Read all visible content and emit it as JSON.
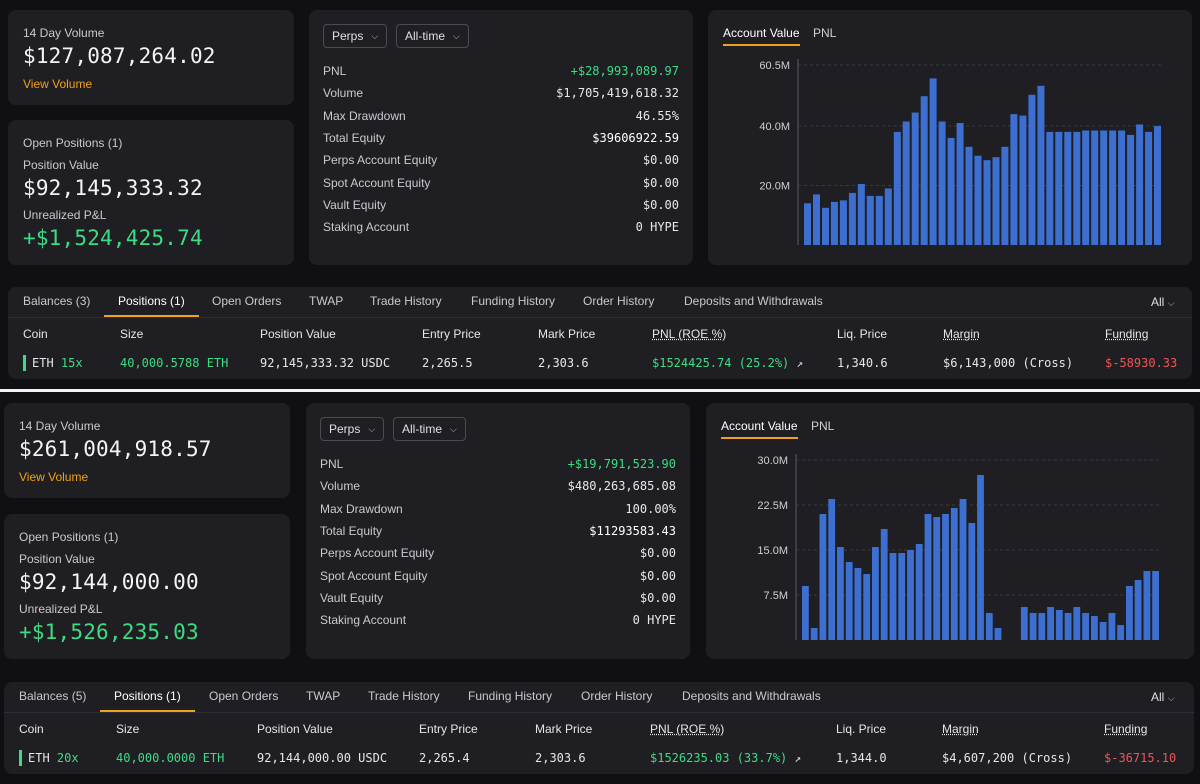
{
  "accounts": [
    {
      "volume": {
        "label": "14 Day Volume",
        "value": "$127,087,264.02",
        "link": "View Volume"
      },
      "positions": {
        "title": "Open Positions (1)",
        "pv_label": "Position Value",
        "pv_value": "$92,145,333.32",
        "upnl_label": "Unrealized P&L",
        "upnl_value": "+$1,524,425.74"
      },
      "filters": {
        "market": "Perps",
        "range": "All-time"
      },
      "stats": [
        {
          "k": "PNL",
          "v": "+$28,993,089.97",
          "tone": "green"
        },
        {
          "k": "Volume",
          "v": "$1,705,419,618.32",
          "tone": "normal"
        },
        {
          "k": "Max Drawdown",
          "v": "46.55%",
          "tone": "normal"
        },
        {
          "k": "Total Equity",
          "v": "$39606922.59",
          "tone": "white"
        },
        {
          "k": "Perps Account Equity",
          "v": "$0.00",
          "tone": "normal"
        },
        {
          "k": "Spot Account Equity",
          "v": "$0.00",
          "tone": "normal"
        },
        {
          "k": "Vault Equity",
          "v": "$0.00",
          "tone": "normal"
        },
        {
          "k": "Staking Account",
          "v": "0 HYPE",
          "tone": "normal"
        }
      ],
      "chart_tabs": [
        "Account Value",
        "PNL"
      ],
      "tabs": [
        "Balances (3)",
        "Positions (1)",
        "Open Orders",
        "TWAP",
        "Trade History",
        "Funding History",
        "Order History",
        "Deposits and Withdrawals"
      ],
      "filter_all": "All",
      "columns": [
        "Coin",
        "Size",
        "Position Value",
        "Entry Price",
        "Mark Price",
        "PNL (ROE %)",
        "Liq. Price",
        "Margin",
        "Funding"
      ],
      "row": {
        "coin": "ETH",
        "lev": "15x",
        "size": "40,000.5788 ETH",
        "pos_value": "92,145,333.32 USDC",
        "entry": "2,265.5",
        "mark": "2,303.6",
        "pnl": "$1524425.74 (25.2%)",
        "liq": "1,340.6",
        "margin": "$6,143,000 (Cross)",
        "funding": "$-58930.33"
      }
    },
    {
      "volume": {
        "label": "14 Day Volume",
        "value": "$261,004,918.57",
        "link": "View Volume"
      },
      "positions": {
        "title": "Open Positions (1)",
        "pv_label": "Position Value",
        "pv_value": "$92,144,000.00",
        "upnl_label": "Unrealized P&L",
        "upnl_value": "+$1,526,235.03"
      },
      "filters": {
        "market": "Perps",
        "range": "All-time"
      },
      "stats": [
        {
          "k": "PNL",
          "v": "+$19,791,523.90",
          "tone": "green"
        },
        {
          "k": "Volume",
          "v": "$480,263,685.08",
          "tone": "normal"
        },
        {
          "k": "Max Drawdown",
          "v": "100.00%",
          "tone": "normal"
        },
        {
          "k": "Total Equity",
          "v": "$11293583.43",
          "tone": "white"
        },
        {
          "k": "Perps Account Equity",
          "v": "$0.00",
          "tone": "normal"
        },
        {
          "k": "Spot Account Equity",
          "v": "$0.00",
          "tone": "normal"
        },
        {
          "k": "Vault Equity",
          "v": "$0.00",
          "tone": "normal"
        },
        {
          "k": "Staking Account",
          "v": "0 HYPE",
          "tone": "normal"
        }
      ],
      "chart_tabs": [
        "Account Value",
        "PNL"
      ],
      "tabs": [
        "Balances (5)",
        "Positions (1)",
        "Open Orders",
        "TWAP",
        "Trade History",
        "Funding History",
        "Order History",
        "Deposits and Withdrawals"
      ],
      "filter_all": "All",
      "columns": [
        "Coin",
        "Size",
        "Position Value",
        "Entry Price",
        "Mark Price",
        "PNL (ROE %)",
        "Liq. Price",
        "Margin",
        "Funding"
      ],
      "row": {
        "coin": "ETH",
        "lev": "20x",
        "size": "40,000.0000 ETH",
        "pos_value": "92,144,000.00 USDC",
        "entry": "2,265.4",
        "mark": "2,303.6",
        "pnl": "$1526235.03 (33.7%)",
        "liq": "1,344.0",
        "margin": "$4,607,200 (Cross)",
        "funding": "$-36715.10"
      }
    }
  ],
  "chart_data": [
    {
      "type": "bar",
      "ylim": [
        0,
        60.5
      ],
      "ytick_labels": [
        "20.0M",
        "40.0M",
        "60.5M"
      ],
      "ytick_values": [
        20,
        40,
        60.5
      ],
      "values": [
        14,
        17,
        12.5,
        14.5,
        15,
        17.5,
        20.5,
        16.5,
        16.5,
        19,
        38,
        41.5,
        44.5,
        50,
        56,
        41.5,
        36,
        41,
        33,
        30,
        28.5,
        29.5,
        33,
        44,
        43.5,
        50.5,
        53.5,
        38,
        38,
        38,
        38,
        38.5,
        38.5,
        38.5,
        38.5,
        38.5,
        37,
        40.5,
        38,
        40
      ],
      "color": "#3d6fd0"
    },
    {
      "type": "bar",
      "ylim": [
        0,
        30
      ],
      "ytick_labels": [
        "7.5M",
        "15.0M",
        "22.5M",
        "30.0M"
      ],
      "ytick_values": [
        7.5,
        15,
        22.5,
        30
      ],
      "values": [
        9,
        2,
        21,
        23.5,
        15.5,
        13,
        12,
        11,
        15.5,
        18.5,
        14.5,
        14.5,
        15,
        16,
        21,
        20.5,
        21,
        22,
        23.5,
        19.5,
        27.5,
        4.5,
        2,
        0,
        0,
        5.5,
        4.5,
        4.5,
        5.5,
        5,
        4.5,
        5.5,
        4.5,
        4,
        3,
        4.5,
        2.5,
        9,
        10,
        11.5,
        11.5
      ],
      "color": "#3d6fd0"
    }
  ]
}
